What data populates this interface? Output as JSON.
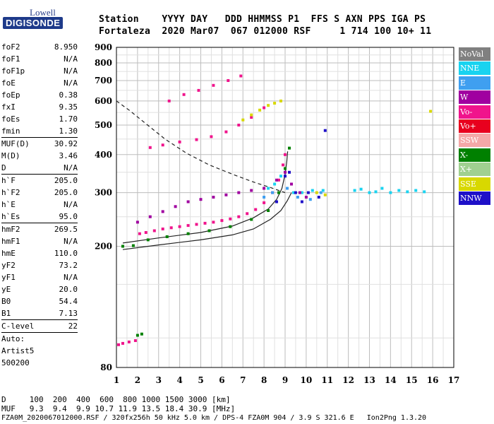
{
  "logo": {
    "top": "Lowell",
    "bottom": "DIGISONDE"
  },
  "header": {
    "line1": "Station    YYYY DAY   DDD HHMMSS P1  FFS S AXN PPS IGA PS",
    "line2": "Fortaleza  2020 Mar07  067 012000 RSF     1 714 100 10+ 11"
  },
  "params": [
    {
      "name": "foF2",
      "value": "8.950"
    },
    {
      "name": "foF1",
      "value": "N/A"
    },
    {
      "name": "foF1p",
      "value": "N/A"
    },
    {
      "name": "foE",
      "value": "N/A"
    },
    {
      "name": "foEp",
      "value": "0.38"
    },
    {
      "name": "fxI",
      "value": "9.35"
    },
    {
      "name": "foEs",
      "value": "1.70"
    },
    {
      "name": "fmin",
      "value": "1.30"
    },
    {
      "sep": true
    },
    {
      "name": "MUF(D)",
      "value": "30.92"
    },
    {
      "name": "M(D)",
      "value": "3.46"
    },
    {
      "name": "D",
      "value": "N/A"
    },
    {
      "sep": true
    },
    {
      "name": "h`F",
      "value": "205.0"
    },
    {
      "name": "h`F2",
      "value": "205.0"
    },
    {
      "name": "h`E",
      "value": "N/A"
    },
    {
      "name": "h`Es",
      "value": "95.0"
    },
    {
      "sep": true
    },
    {
      "name": "hmF2",
      "value": "269.5"
    },
    {
      "name": "hmF1",
      "value": "N/A"
    },
    {
      "name": "hmE",
      "value": "110.0"
    },
    {
      "name": "yF2",
      "value": "73.2"
    },
    {
      "name": "yF1",
      "value": "N/A"
    },
    {
      "name": "yE",
      "value": "20.0"
    },
    {
      "name": "B0",
      "value": "54.4"
    },
    {
      "name": "B1",
      "value": "7.13"
    },
    {
      "sep": true
    },
    {
      "name": "C-level",
      "value": "22"
    },
    {
      "sep": true
    },
    {
      "text": "Auto:"
    },
    {
      "text": "Artist5"
    },
    {
      "text": "500200"
    }
  ],
  "legend": [
    {
      "label": "NoVal",
      "color": "#808080"
    },
    {
      "label": "NNE",
      "color": "#19d3f0"
    },
    {
      "label": "E",
      "color": "#3f9ff0"
    },
    {
      "label": "W",
      "color": "#a000a0"
    },
    {
      "label": "Vo-",
      "color": "#f0148c"
    },
    {
      "label": "Vo+",
      "color": "#e8001e"
    },
    {
      "label": "SSW",
      "color": "#f5a8a8"
    },
    {
      "label": "X-",
      "color": "#008000"
    },
    {
      "label": "X+",
      "color": "#a0d090"
    },
    {
      "label": "SSE",
      "color": "#d8d800"
    },
    {
      "label": "NNW",
      "color": "#1e10c8"
    }
  ],
  "footer": {
    "line1": "D     100  200  400  600  800 1000 1500 3000 [km]",
    "line2": "MUF   9.3  9.4  9.9 10.7 11.9 13.5 18.4 30.9 [MHz]",
    "line3": "FZA0M_2020067012000.RSF / 320fx256h 50 kHz 5.0 km / DPS-4 FZA0M 904 / 3.9 S 321.6 E   Ion2Png 1.3.20"
  },
  "chart_data": {
    "type": "scatter",
    "title": "",
    "xlabel": "",
    "ylabel": "",
    "xlim": [
      1,
      17
    ],
    "ylim": [
      80,
      900
    ],
    "yscale": "log",
    "xticks": [
      1,
      2,
      3,
      4,
      5,
      6,
      7,
      8,
      9,
      10,
      11,
      12,
      13,
      14,
      15,
      16,
      17
    ],
    "yticks": [
      80,
      200,
      300,
      400,
      500,
      600,
      700,
      800,
      900
    ],
    "grid": true,
    "series": [
      {
        "name": "Vo-",
        "color": "#f0148c",
        "points": [
          [
            1.1,
            95
          ],
          [
            1.3,
            96
          ],
          [
            1.6,
            97
          ],
          [
            1.9,
            98
          ],
          [
            2.1,
            220
          ],
          [
            2.4,
            222
          ],
          [
            2.8,
            225
          ],
          [
            3.2,
            228
          ],
          [
            3.6,
            230
          ],
          [
            4.0,
            232
          ],
          [
            4.4,
            234
          ],
          [
            4.8,
            236
          ],
          [
            5.2,
            238
          ],
          [
            5.6,
            240
          ],
          [
            6.0,
            243
          ],
          [
            6.4,
            246
          ],
          [
            6.8,
            250
          ],
          [
            7.2,
            256
          ],
          [
            7.6,
            264
          ],
          [
            8.0,
            278
          ],
          [
            8.4,
            300
          ],
          [
            8.7,
            330
          ],
          [
            8.9,
            370
          ],
          [
            9.0,
            400
          ],
          [
            2.6,
            422
          ],
          [
            3.2,
            430
          ],
          [
            4.0,
            440
          ],
          [
            4.8,
            448
          ],
          [
            5.5,
            458
          ],
          [
            6.2,
            475
          ],
          [
            6.8,
            500
          ],
          [
            7.4,
            530
          ],
          [
            8.0,
            570
          ],
          [
            3.5,
            600
          ],
          [
            4.2,
            630
          ],
          [
            4.9,
            650
          ],
          [
            5.6,
            675
          ],
          [
            6.3,
            700
          ],
          [
            6.9,
            725
          ]
        ]
      },
      {
        "name": "NNE",
        "color": "#19d3f0",
        "points": [
          [
            8.2,
            310
          ],
          [
            8.5,
            320
          ],
          [
            8.8,
            340
          ],
          [
            9.4,
            300
          ],
          [
            9.8,
            300
          ],
          [
            10.3,
            305
          ],
          [
            10.8,
            305
          ],
          [
            12.3,
            305
          ],
          [
            12.6,
            308
          ],
          [
            13.0,
            300
          ],
          [
            13.3,
            302
          ],
          [
            13.6,
            310
          ],
          [
            14.0,
            300
          ],
          [
            14.4,
            305
          ],
          [
            14.8,
            302
          ],
          [
            15.2,
            305
          ],
          [
            15.6,
            302
          ]
        ]
      },
      {
        "name": "X-",
        "color": "#008000",
        "points": [
          [
            1.3,
            200
          ],
          [
            1.8,
            201
          ],
          [
            2.5,
            210
          ],
          [
            3.4,
            215
          ],
          [
            4.4,
            220
          ],
          [
            5.4,
            225
          ],
          [
            6.4,
            232
          ],
          [
            7.4,
            245
          ],
          [
            8.2,
            262
          ],
          [
            8.7,
            300
          ],
          [
            9.0,
            360
          ],
          [
            9.2,
            420
          ],
          [
            2.0,
            102
          ],
          [
            2.2,
            103
          ]
        ]
      },
      {
        "name": "W",
        "color": "#a000a0",
        "points": [
          [
            2.0,
            240
          ],
          [
            2.6,
            250
          ],
          [
            3.2,
            260
          ],
          [
            3.8,
            270
          ],
          [
            4.4,
            280
          ],
          [
            5.0,
            285
          ],
          [
            5.6,
            290
          ],
          [
            6.2,
            295
          ],
          [
            6.8,
            300
          ],
          [
            7.4,
            305
          ],
          [
            8.0,
            310
          ],
          [
            8.6,
            330
          ],
          [
            9.0,
            350
          ],
          [
            9.3,
            320
          ],
          [
            9.7,
            300
          ],
          [
            10.0,
            290
          ]
        ]
      },
      {
        "name": "NNW",
        "color": "#1e10c8",
        "points": [
          [
            9.0,
            340
          ],
          [
            9.2,
            350
          ],
          [
            9.5,
            300
          ],
          [
            9.8,
            280
          ],
          [
            10.1,
            300
          ],
          [
            10.6,
            290
          ],
          [
            10.9,
            480
          ],
          [
            8.6,
            280
          ]
        ]
      },
      {
        "name": "SSE",
        "color": "#d8d800",
        "points": [
          [
            7.0,
            520
          ],
          [
            7.4,
            540
          ],
          [
            7.8,
            560
          ],
          [
            8.2,
            580
          ],
          [
            8.5,
            590
          ],
          [
            8.8,
            600
          ],
          [
            10.5,
            300
          ],
          [
            10.9,
            295
          ],
          [
            15.9,
            555
          ]
        ]
      },
      {
        "name": "E",
        "color": "#3f9ff0",
        "points": [
          [
            8.0,
            290
          ],
          [
            8.4,
            300
          ],
          [
            9.1,
            310
          ],
          [
            9.6,
            290
          ],
          [
            10.2,
            285
          ],
          [
            10.7,
            300
          ]
        ]
      }
    ],
    "curves": [
      {
        "name": "profile",
        "style": "solid",
        "points": [
          [
            1.3,
            205
          ],
          [
            3.0,
            213
          ],
          [
            5.0,
            222
          ],
          [
            6.5,
            233
          ],
          [
            7.5,
            248
          ],
          [
            8.2,
            265
          ],
          [
            8.6,
            285
          ],
          [
            8.85,
            310
          ],
          [
            9.0,
            345
          ],
          [
            9.08,
            380
          ],
          [
            9.12,
            410
          ]
        ]
      },
      {
        "name": "profile-x",
        "style": "solid",
        "points": [
          [
            1.3,
            195
          ],
          [
            3.0,
            202
          ],
          [
            5.0,
            210
          ],
          [
            6.5,
            218
          ],
          [
            7.5,
            228
          ],
          [
            8.3,
            245
          ],
          [
            8.8,
            262
          ],
          [
            9.1,
            282
          ],
          [
            9.3,
            300
          ]
        ]
      },
      {
        "name": "muf",
        "style": "dashed",
        "points": [
          [
            1.0,
            600
          ],
          [
            1.6,
            560
          ],
          [
            2.4,
            505
          ],
          [
            3.3,
            450
          ],
          [
            4.3,
            405
          ],
          [
            5.4,
            370
          ],
          [
            6.5,
            345
          ],
          [
            7.5,
            325
          ],
          [
            8.3,
            312
          ],
          [
            9.0,
            300
          ]
        ]
      }
    ]
  }
}
